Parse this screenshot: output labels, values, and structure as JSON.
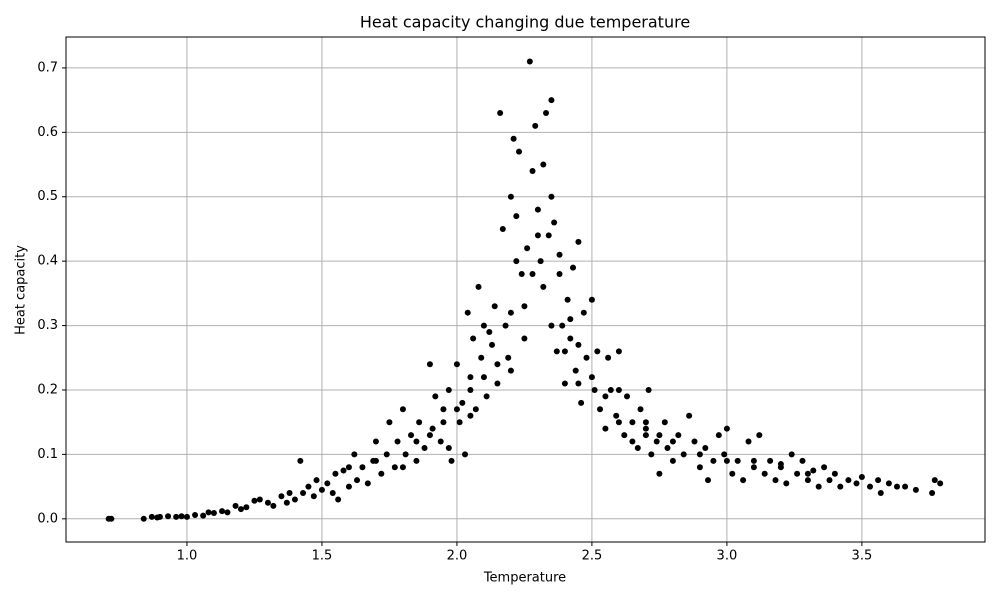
{
  "chart_data": {
    "type": "scatter",
    "title": "Heat capacity changing due temperature",
    "x_label": "Temperature",
    "y_label": "Heat capacity",
    "color": "#000000",
    "grid": true,
    "xlim": [
      0.552,
      3.956
    ],
    "ylim": [
      -0.036,
      0.748
    ],
    "xticks": [
      {
        "value": 1,
        "label": "1.0"
      },
      1.5,
      {
        "value": 2,
        "label": "2.0"
      },
      2.5,
      {
        "value": 3,
        "label": "3.0"
      },
      3.5
    ],
    "yticks": [
      {
        "value": 0,
        "label": "0.0"
      },
      0.1,
      0.2,
      0.3,
      0.4,
      0.5,
      0.6,
      0.7
    ],
    "x": [
      0.71,
      0.72,
      0.84,
      0.87,
      0.89,
      0.9,
      0.93,
      0.96,
      0.98,
      1.0,
      1.03,
      1.06,
      1.08,
      1.1,
      1.13,
      1.15,
      1.18,
      1.2,
      1.22,
      1.25,
      1.27,
      1.3,
      1.32,
      1.35,
      1.37,
      1.38,
      1.4,
      1.42,
      1.43,
      1.45,
      1.47,
      1.48,
      1.5,
      1.52,
      1.54,
      1.55,
      1.56,
      1.58,
      1.6,
      1.62,
      1.63,
      1.65,
      1.67,
      1.69,
      1.7,
      1.72,
      1.74,
      1.75,
      1.77,
      1.78,
      1.8,
      1.81,
      1.83,
      1.85,
      1.86,
      1.88,
      1.9,
      1.91,
      1.92,
      1.94,
      1.95,
      1.97,
      1.98,
      2.0,
      2.01,
      2.02,
      2.03,
      2.04,
      2.05,
      2.06,
      2.07,
      2.08,
      2.09,
      2.1,
      2.11,
      2.12,
      2.13,
      2.14,
      2.15,
      2.16,
      2.17,
      2.18,
      2.19,
      2.2,
      2.21,
      2.22,
      2.23,
      2.24,
      2.25,
      2.26,
      2.27,
      2.28,
      2.29,
      2.3,
      2.31,
      2.32,
      2.33,
      2.34,
      2.35,
      2.36,
      2.37,
      2.38,
      2.39,
      2.4,
      2.41,
      2.42,
      2.43,
      2.44,
      2.45,
      2.46,
      2.47,
      2.48,
      2.5,
      2.51,
      2.52,
      2.53,
      2.55,
      2.56,
      2.57,
      2.59,
      2.6,
      2.62,
      2.63,
      2.65,
      2.67,
      2.68,
      2.7,
      2.71,
      2.72,
      2.74,
      2.75,
      2.77,
      2.78,
      2.8,
      2.82,
      2.84,
      2.86,
      2.88,
      2.9,
      2.92,
      2.93,
      2.95,
      2.97,
      2.99,
      3.0,
      3.02,
      3.04,
      3.06,
      3.08,
      3.1,
      3.12,
      3.14,
      3.16,
      3.18,
      3.2,
      3.22,
      3.24,
      3.26,
      3.28,
      3.3,
      3.32,
      3.34,
      3.36,
      3.38,
      3.4,
      3.42,
      3.45,
      3.48,
      3.5,
      3.53,
      3.56,
      3.57,
      3.6,
      3.63,
      3.66,
      3.7,
      3.76,
      3.77,
      3.79,
      1.6,
      1.7,
      1.8,
      1.85,
      1.9,
      1.95,
      2.0,
      2.05,
      2.1,
      2.15,
      2.2,
      2.22,
      2.25,
      2.28,
      2.3,
      2.32,
      2.35,
      2.38,
      2.4,
      2.42,
      2.45,
      2.5,
      2.55,
      2.6,
      2.65,
      2.7,
      2.75,
      2.8,
      2.9,
      3.0,
      3.1,
      3.2,
      3.3,
      2.45,
      2.35,
      2.2,
      2.05,
      1.97,
      2.6,
      2.7
    ],
    "y": [
      0,
      0,
      0,
      0.003,
      0.002,
      0.003,
      0.004,
      0.003,
      0.004,
      0.003,
      0.006,
      0.005,
      0.01,
      0.009,
      0.012,
      0.01,
      0.02,
      0.015,
      0.018,
      0.028,
      0.03,
      0.025,
      0.02,
      0.035,
      0.025,
      0.04,
      0.03,
      0.09,
      0.04,
      0.05,
      0.035,
      0.06,
      0.045,
      0.055,
      0.04,
      0.07,
      0.03,
      0.075,
      0.05,
      0.1,
      0.06,
      0.08,
      0.055,
      0.09,
      0.12,
      0.07,
      0.1,
      0.15,
      0.08,
      0.12,
      0.17,
      0.1,
      0.13,
      0.09,
      0.15,
      0.11,
      0.24,
      0.14,
      0.19,
      0.12,
      0.17,
      0.2,
      0.09,
      0.24,
      0.15,
      0.18,
      0.1,
      0.32,
      0.2,
      0.28,
      0.17,
      0.36,
      0.25,
      0.22,
      0.19,
      0.29,
      0.27,
      0.33,
      0.21,
      0.63,
      0.45,
      0.3,
      0.25,
      0.5,
      0.59,
      0.47,
      0.57,
      0.38,
      0.33,
      0.42,
      0.71,
      0.54,
      0.61,
      0.48,
      0.4,
      0.55,
      0.63,
      0.44,
      0.65,
      0.46,
      0.26,
      0.41,
      0.3,
      0.21,
      0.34,
      0.28,
      0.39,
      0.23,
      0.43,
      0.18,
      0.32,
      0.25,
      0.34,
      0.2,
      0.26,
      0.17,
      0.14,
      0.25,
      0.2,
      0.16,
      0.26,
      0.13,
      0.19,
      0.15,
      0.11,
      0.17,
      0.14,
      0.2,
      0.1,
      0.12,
      0.07,
      0.15,
      0.11,
      0.09,
      0.13,
      0.1,
      0.16,
      0.12,
      0.08,
      0.11,
      0.06,
      0.09,
      0.13,
      0.1,
      0.14,
      0.07,
      0.09,
      0.06,
      0.12,
      0.08,
      0.13,
      0.07,
      0.09,
      0.06,
      0.08,
      0.055,
      0.1,
      0.07,
      0.09,
      0.06,
      0.075,
      0.05,
      0.08,
      0.06,
      0.07,
      0.05,
      0.06,
      0.055,
      0.065,
      0.05,
      0.06,
      0.04,
      0.055,
      0.05,
      0.05,
      0.045,
      0.04,
      0.06,
      0.055,
      0.08,
      0.09,
      0.08,
      0.12,
      0.13,
      0.15,
      0.17,
      0.22,
      0.3,
      0.24,
      0.32,
      0.4,
      0.28,
      0.38,
      0.44,
      0.36,
      0.5,
      0.38,
      0.26,
      0.31,
      0.21,
      0.22,
      0.19,
      0.15,
      0.12,
      0.13,
      0.13,
      0.12,
      0.1,
      0.09,
      0.09,
      0.085,
      0.07,
      0.27,
      0.3,
      0.23,
      0.16,
      0.11,
      0.2,
      0.15
    ]
  }
}
